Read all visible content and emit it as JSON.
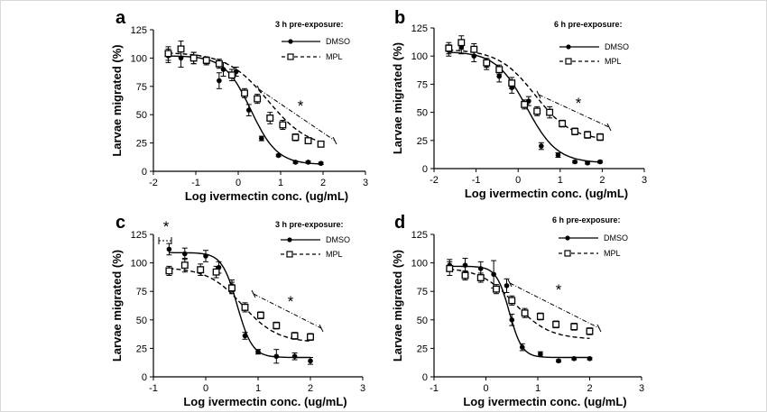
{
  "chart_data": [
    {
      "type": "scatter",
      "panel_label": "a",
      "legend_title": "3 h pre-exposure:",
      "xlabel": "Log ivermectin conc.  (ug/mL)",
      "ylabel": "Larvae migrated  (%)",
      "xlim": [
        -2,
        3
      ],
      "ylim": [
        0,
        125
      ],
      "xticks": [
        -2,
        -1,
        0,
        1,
        2,
        3
      ],
      "yticks": [
        0,
        25,
        50,
        75,
        100,
        125
      ],
      "annotation": "*",
      "series": [
        {
          "name": "DMSO",
          "marker": "filled-circle",
          "line": "solid",
          "x": [
            -1.65,
            -1.35,
            -1.05,
            -0.75,
            -0.45,
            -0.35,
            -0.05,
            0.25,
            0.55,
            0.95,
            1.35,
            1.65,
            1.95
          ],
          "y": [
            102,
            100,
            100,
            97,
            80,
            90,
            88,
            54,
            29,
            14,
            8,
            8,
            7
          ],
          "err": [
            6,
            8,
            5,
            3,
            7,
            6,
            4,
            5,
            2,
            1,
            1,
            1,
            1
          ],
          "fit": {
            "top": 102,
            "bottom": 6,
            "logec50": 0.3,
            "hill": -1.4
          }
        },
        {
          "name": "MPL",
          "marker": "open-square",
          "line": "dashed",
          "x": [
            -1.65,
            -1.35,
            -1.05,
            -0.75,
            -0.45,
            -0.15,
            0.15,
            0.45,
            0.75,
            1.05,
            1.35,
            1.65,
            1.95
          ],
          "y": [
            104,
            108,
            100,
            98,
            95,
            85,
            69,
            64,
            47,
            41,
            30,
            27,
            24
          ],
          "err": [
            6,
            7,
            5,
            3,
            4,
            5,
            4,
            4,
            5,
            4,
            3,
            2,
            2
          ],
          "fit": {
            "top": 105,
            "bottom": 20,
            "logec50": 0.7,
            "hill": -0.9
          }
        }
      ]
    },
    {
      "type": "scatter",
      "panel_label": "b",
      "legend_title": "6 h pre-exposure:",
      "xlabel": "Log ivermectin conc.  (ug/mL)",
      "ylabel": "Larvae migrated  (%)",
      "xlim": [
        -2,
        3
      ],
      "ylim": [
        0,
        125
      ],
      "xticks": [
        -2,
        -1,
        0,
        1,
        2,
        3
      ],
      "yticks": [
        0,
        25,
        50,
        75,
        100,
        125
      ],
      "annotation": "*",
      "series": [
        {
          "name": "DMSO",
          "marker": "filled-circle",
          "line": "solid",
          "x": [
            -1.65,
            -1.35,
            -1.05,
            -0.75,
            -0.45,
            -0.15,
            0.25,
            0.55,
            0.95,
            1.35,
            1.65,
            1.95
          ],
          "y": [
            105,
            108,
            100,
            92,
            82,
            72,
            60,
            20,
            12,
            6,
            5,
            6
          ],
          "err": [
            5,
            6,
            5,
            4,
            5,
            5,
            4,
            3,
            2,
            1,
            1,
            1
          ],
          "fit": {
            "top": 104,
            "bottom": 5,
            "logec50": 0.2,
            "hill": -1.2
          }
        },
        {
          "name": "MPL",
          "marker": "open-square",
          "line": "dashed",
          "x": [
            -1.65,
            -1.35,
            -1.05,
            -0.75,
            -0.45,
            -0.15,
            0.15,
            0.45,
            0.75,
            1.05,
            1.35,
            1.65,
            1.95
          ],
          "y": [
            107,
            112,
            106,
            94,
            88,
            76,
            57,
            51,
            50,
            40,
            33,
            30,
            28
          ],
          "err": [
            5,
            6,
            5,
            4,
            4,
            5,
            4,
            4,
            5,
            3,
            3,
            3,
            3
          ],
          "fit": {
            "top": 106,
            "bottom": 25,
            "logec50": 0.4,
            "hill": -1.0
          }
        }
      ]
    },
    {
      "type": "scatter",
      "panel_label": "c",
      "legend_title": "3 h pre-exposure:",
      "xlabel": "Log ivermectin conc.  (ug/mL)",
      "ylabel": "Larvae migrated  (%)",
      "xlim": [
        -1,
        3
      ],
      "ylim": [
        0,
        125
      ],
      "xticks": [
        -1,
        0,
        1,
        2,
        3
      ],
      "yticks": [
        0,
        25,
        50,
        75,
        100,
        125
      ],
      "annotation": "*",
      "annotation_2": "*",
      "series": [
        {
          "name": "DMSO",
          "marker": "filled-circle",
          "line": "solid",
          "x": [
            -0.7,
            -0.4,
            0.0,
            0.25,
            0.5,
            0.75,
            1.0,
            1.35,
            1.7,
            2.0
          ],
          "y": [
            112,
            108,
            106,
            96,
            80,
            36,
            22,
            18,
            18,
            14
          ],
          "err": [
            5,
            5,
            5,
            5,
            5,
            3,
            2,
            6,
            3,
            3
          ],
          "fit": {
            "top": 109,
            "bottom": 17,
            "logec50": 0.6,
            "hill": -3.0
          }
        },
        {
          "name": "MPL",
          "marker": "open-square",
          "line": "dashed",
          "x": [
            -0.7,
            -0.4,
            -0.1,
            0.2,
            0.5,
            0.75,
            1.05,
            1.35,
            1.7,
            2.0
          ],
          "y": [
            93,
            98,
            94,
            92,
            78,
            61,
            54,
            45,
            36,
            35
          ],
          "err": [
            4,
            6,
            5,
            5,
            5,
            4,
            3,
            3,
            3,
            3
          ],
          "fit": {
            "top": 96,
            "bottom": 30,
            "logec50": 0.7,
            "hill": -1.3
          }
        }
      ]
    },
    {
      "type": "scatter",
      "panel_label": "d",
      "legend_title": "6 h pre-exposure:",
      "xlabel": "Log ivermectin conc.  (ug/mL)",
      "ylabel": "Larvae migrated  (%)",
      "xlim": [
        -1,
        3
      ],
      "ylim": [
        0,
        125
      ],
      "xticks": [
        -1,
        0,
        1,
        2,
        3
      ],
      "yticks": [
        0,
        25,
        50,
        75,
        100,
        125
      ],
      "annotation": "*",
      "series": [
        {
          "name": "DMSO",
          "marker": "filled-circle",
          "line": "solid",
          "x": [
            -0.7,
            -0.4,
            -0.1,
            0.15,
            0.4,
            0.5,
            0.7,
            1.05,
            1.4,
            1.7,
            2.0
          ],
          "y": [
            98,
            98,
            95,
            90,
            80,
            50,
            26,
            20,
            14,
            16,
            16
          ],
          "err": [
            5,
            6,
            6,
            12,
            6,
            5,
            3,
            2,
            1,
            1,
            1
          ],
          "fit": {
            "top": 97,
            "bottom": 17,
            "logec50": 0.45,
            "hill": -3.5
          }
        },
        {
          "name": "MPL",
          "marker": "open-square",
          "line": "dashed",
          "x": [
            -0.7,
            -0.4,
            -0.1,
            0.2,
            0.5,
            0.75,
            1.05,
            1.35,
            1.7,
            2.0
          ],
          "y": [
            95,
            89,
            87,
            77,
            67,
            56,
            53,
            46,
            44,
            40
          ],
          "err": [
            6,
            4,
            4,
            4,
            4,
            4,
            3,
            3,
            3,
            3
          ],
          "fit": {
            "top": 96,
            "bottom": 33,
            "logec50": 0.55,
            "hill": -1.3
          }
        }
      ]
    }
  ]
}
